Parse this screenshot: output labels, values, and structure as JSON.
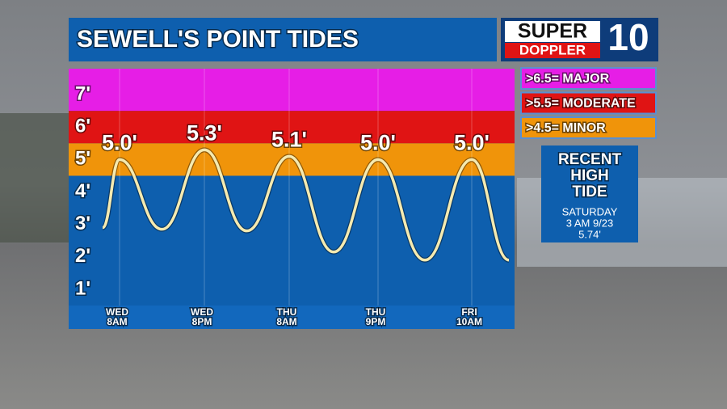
{
  "chart_data": {
    "type": "line",
    "title": "SEWELL'S POINT TIDES",
    "logo": {
      "top": "SUPER",
      "bottom": "DOPPLER",
      "number": "10"
    },
    "categories": [
      "WED\n8AM",
      "WED\n8PM",
      "THU\n8AM",
      "THU\n9PM",
      "FRI\n10AM"
    ],
    "values": [
      5.0,
      5.3,
      5.1,
      5.0,
      5.0
    ],
    "value_labels": [
      "5.0'",
      "5.3'",
      "5.1'",
      "5.0'",
      "5.0'"
    ],
    "start": 2.9,
    "lows": [
      2.85,
      2.8,
      2.15,
      1.9
    ],
    "end": 1.9,
    "color": "#f5eab0",
    "ylim": [
      0.5,
      7.8
    ],
    "yticks": [
      {
        "value": 1,
        "label": "1'"
      },
      {
        "value": 2,
        "label": "2'"
      },
      {
        "value": 3,
        "label": "3'"
      },
      {
        "value": 4,
        "label": "4'"
      },
      {
        "value": 5,
        "label": "5'"
      },
      {
        "value": 6,
        "label": "6'"
      },
      {
        "value": 7,
        "label": "7'"
      }
    ],
    "flood_levels": [
      {
        "label": ">6.5= MAJOR",
        "value": 6.5,
        "color": "#e61ee6"
      },
      {
        "label": ">5.5= MODERATE",
        "value": 5.5,
        "color": "#e01414"
      },
      {
        "label": ">4.5= MINOR",
        "value": 4.5,
        "color": "#f0940a"
      }
    ],
    "below_color": "#0e5fae",
    "recent": {
      "heading": [
        "RECENT",
        "HIGH",
        "TIDE"
      ],
      "lines": [
        "SATURDAY",
        "3 AM 9/23",
        "5.74'"
      ]
    }
  }
}
